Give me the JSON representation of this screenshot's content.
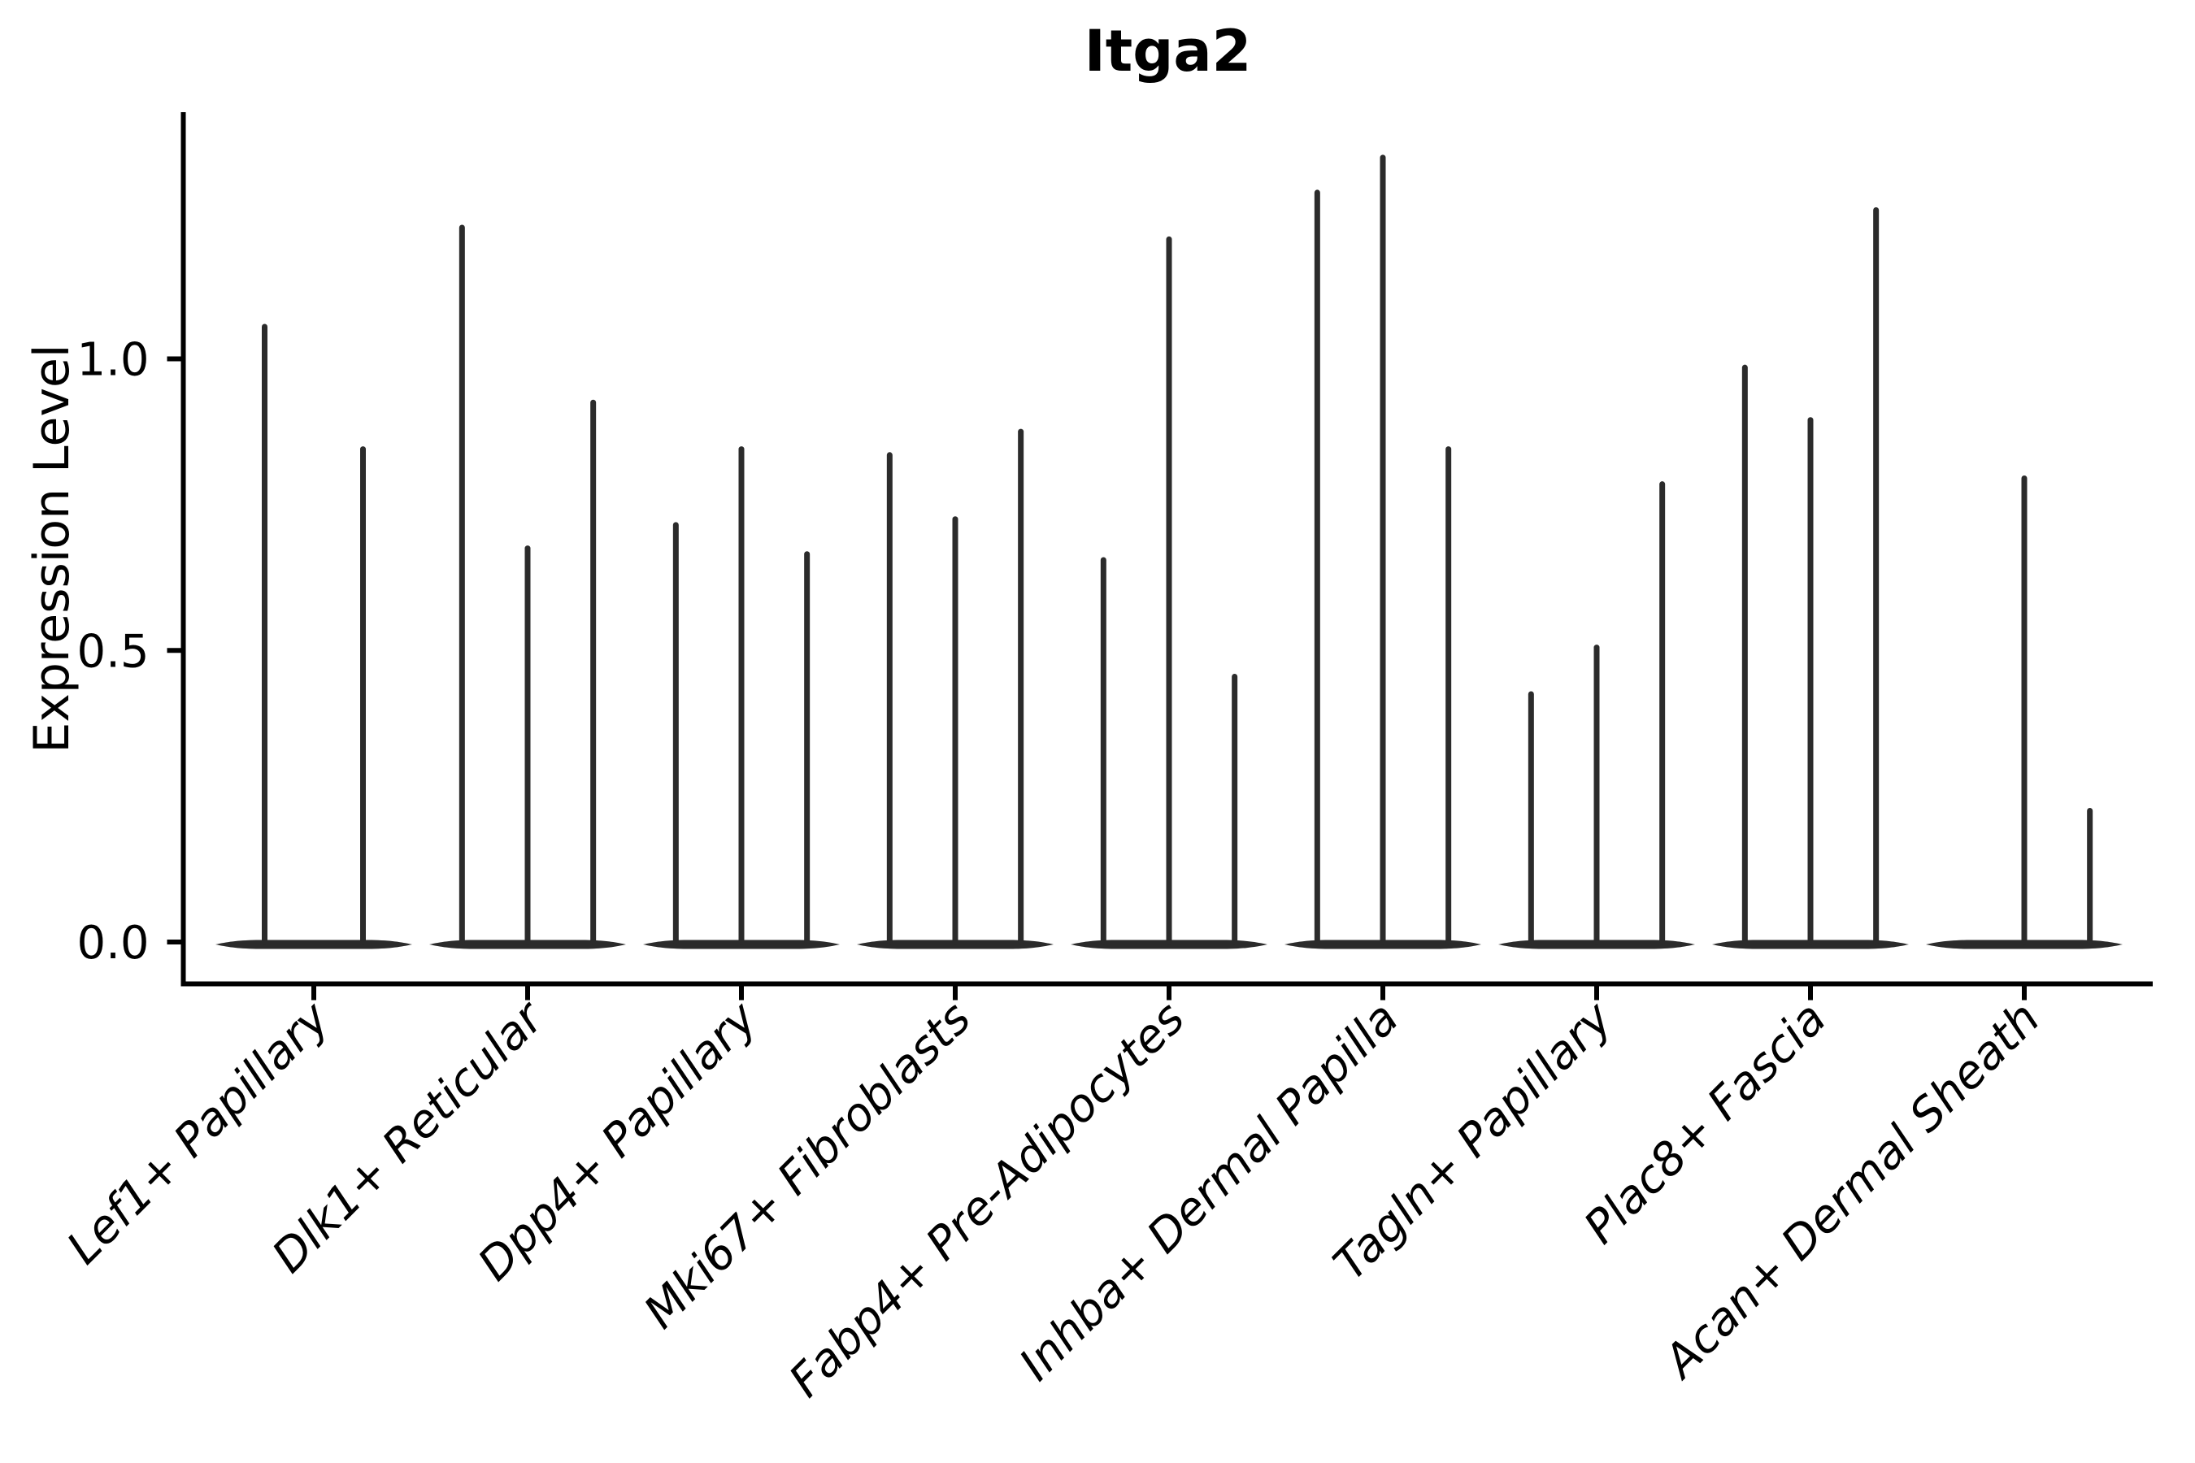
{
  "chart_data": {
    "type": "violin",
    "title": "Itga2",
    "xlabel": "",
    "ylabel": "Expression Level",
    "ylim": [
      -0.07,
      1.42
    ],
    "grid": false,
    "legend": "none",
    "x_tick_style": "italic, rotated 45 degrees, right-anchored",
    "yticks": [
      {
        "label": "0.0",
        "value": 0.0
      },
      {
        "label": "0.5",
        "value": 0.5
      },
      {
        "label": "1.0",
        "value": 1.0
      }
    ],
    "categories": [
      "Lef1+ Papillary",
      "Dlk1+ Reticular",
      "Dpp4+ Papillary",
      "Mki67+ Fibroblasts",
      "Fabp4+ Pre-Adipocytes",
      "Inhba+ Dermal Papilla",
      "Tagln+ Papillary",
      "Plac8+ Fascia",
      "Acan+ Dermal Sheath"
    ],
    "groups": [
      {
        "category": "Lef1+ Papillary",
        "violin_max_expression": [
          1.06,
          0.85
        ]
      },
      {
        "category": "Dlk1+ Reticular",
        "violin_max_expression": [
          1.23,
          0.68,
          0.93
        ]
      },
      {
        "category": "Dpp4+ Papillary",
        "violin_max_expression": [
          0.72,
          0.85,
          0.67
        ]
      },
      {
        "category": "Mki67+ Fibroblasts",
        "violin_max_expression": [
          0.84,
          0.73,
          0.88
        ]
      },
      {
        "category": "Fabp4+ Pre-Adipocytes",
        "violin_max_expression": [
          0.66,
          1.21,
          0.46
        ]
      },
      {
        "category": "Inhba+ Dermal Papilla",
        "violin_max_expression": [
          1.29,
          1.35,
          0.85
        ]
      },
      {
        "category": "Tagln+ Papillary",
        "violin_max_expression": [
          0.43,
          0.51,
          0.79
        ]
      },
      {
        "category": "Plac8+ Fascia",
        "violin_max_expression": [
          0.99,
          0.9,
          1.26
        ]
      },
      {
        "category": "Acan+ Dermal Sheath",
        "violin_max_expression": [
          0.0,
          0.8,
          0.23
        ]
      }
    ],
    "colors": {
      "violin": "#2b2b2b",
      "axis": "#000000",
      "text": "#000000",
      "background": "#ffffff"
    }
  }
}
